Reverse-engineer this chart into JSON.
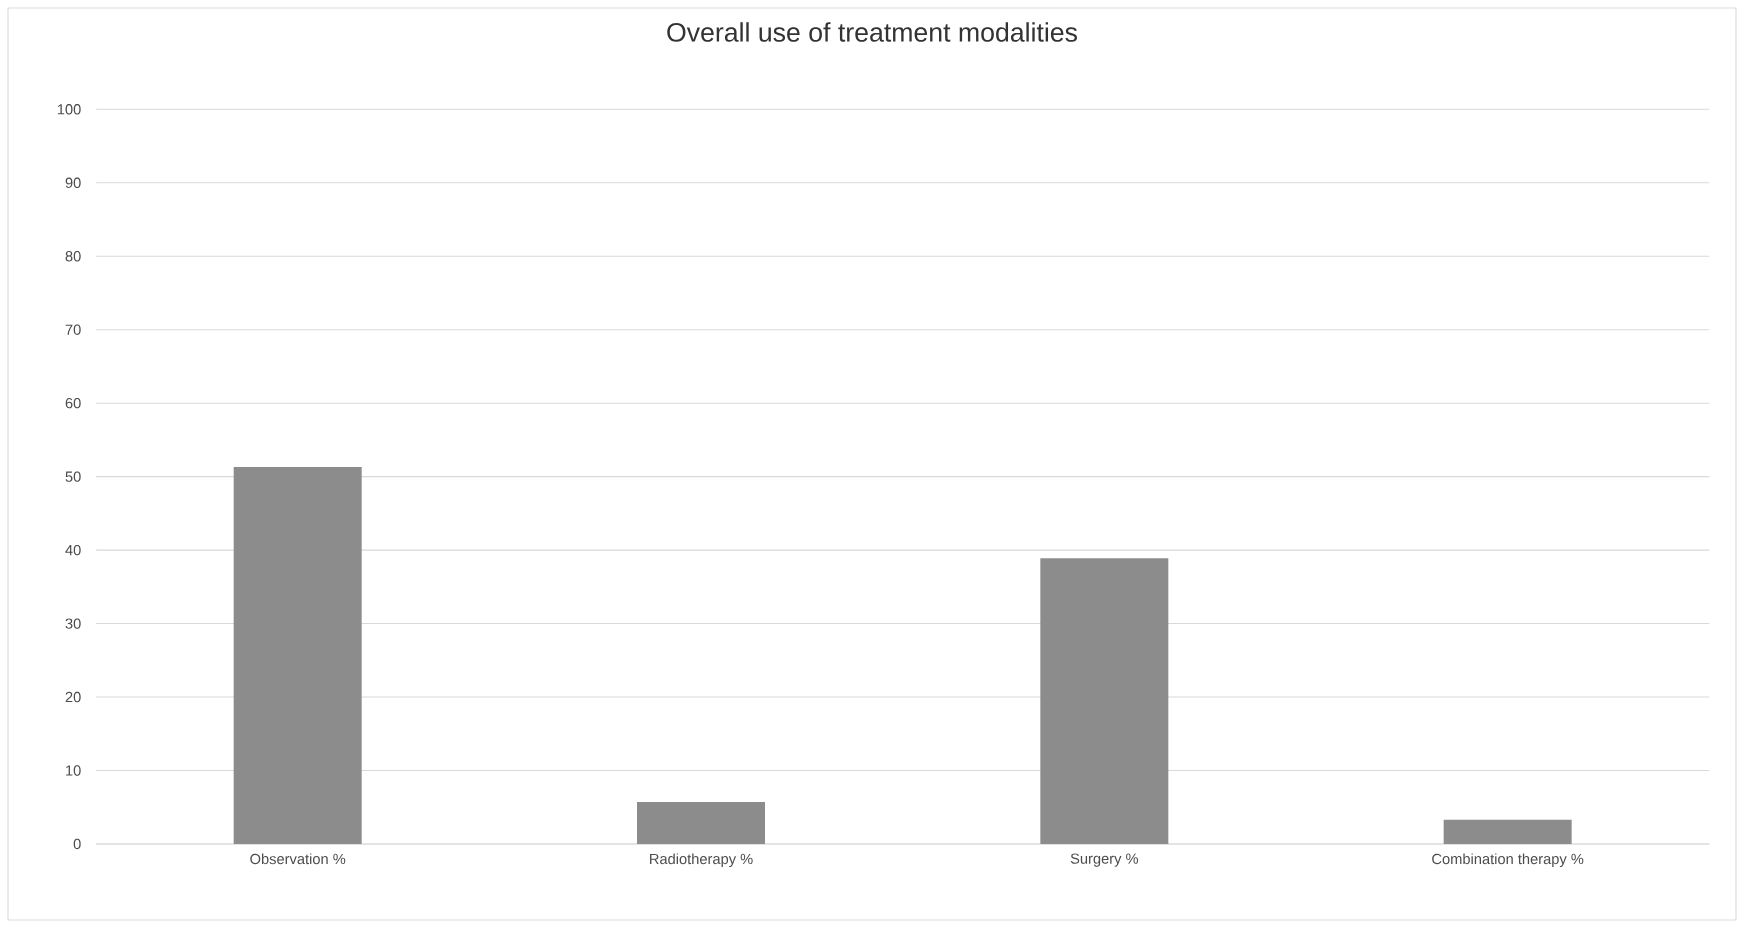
{
  "chart_data": {
    "type": "bar",
    "title": "Overall use of treatment modalities",
    "categories": [
      "Observation %",
      "Radiotherapy %",
      "Surgery %",
      "Combination therapy %"
    ],
    "values": [
      51.3,
      5.7,
      38.9,
      3.3
    ],
    "color": "#8c8c8c",
    "ylim": [
      0,
      100
    ],
    "yticks": [
      0,
      10,
      20,
      30,
      40,
      50,
      60,
      70,
      80,
      90,
      100
    ],
    "grid": "y"
  }
}
